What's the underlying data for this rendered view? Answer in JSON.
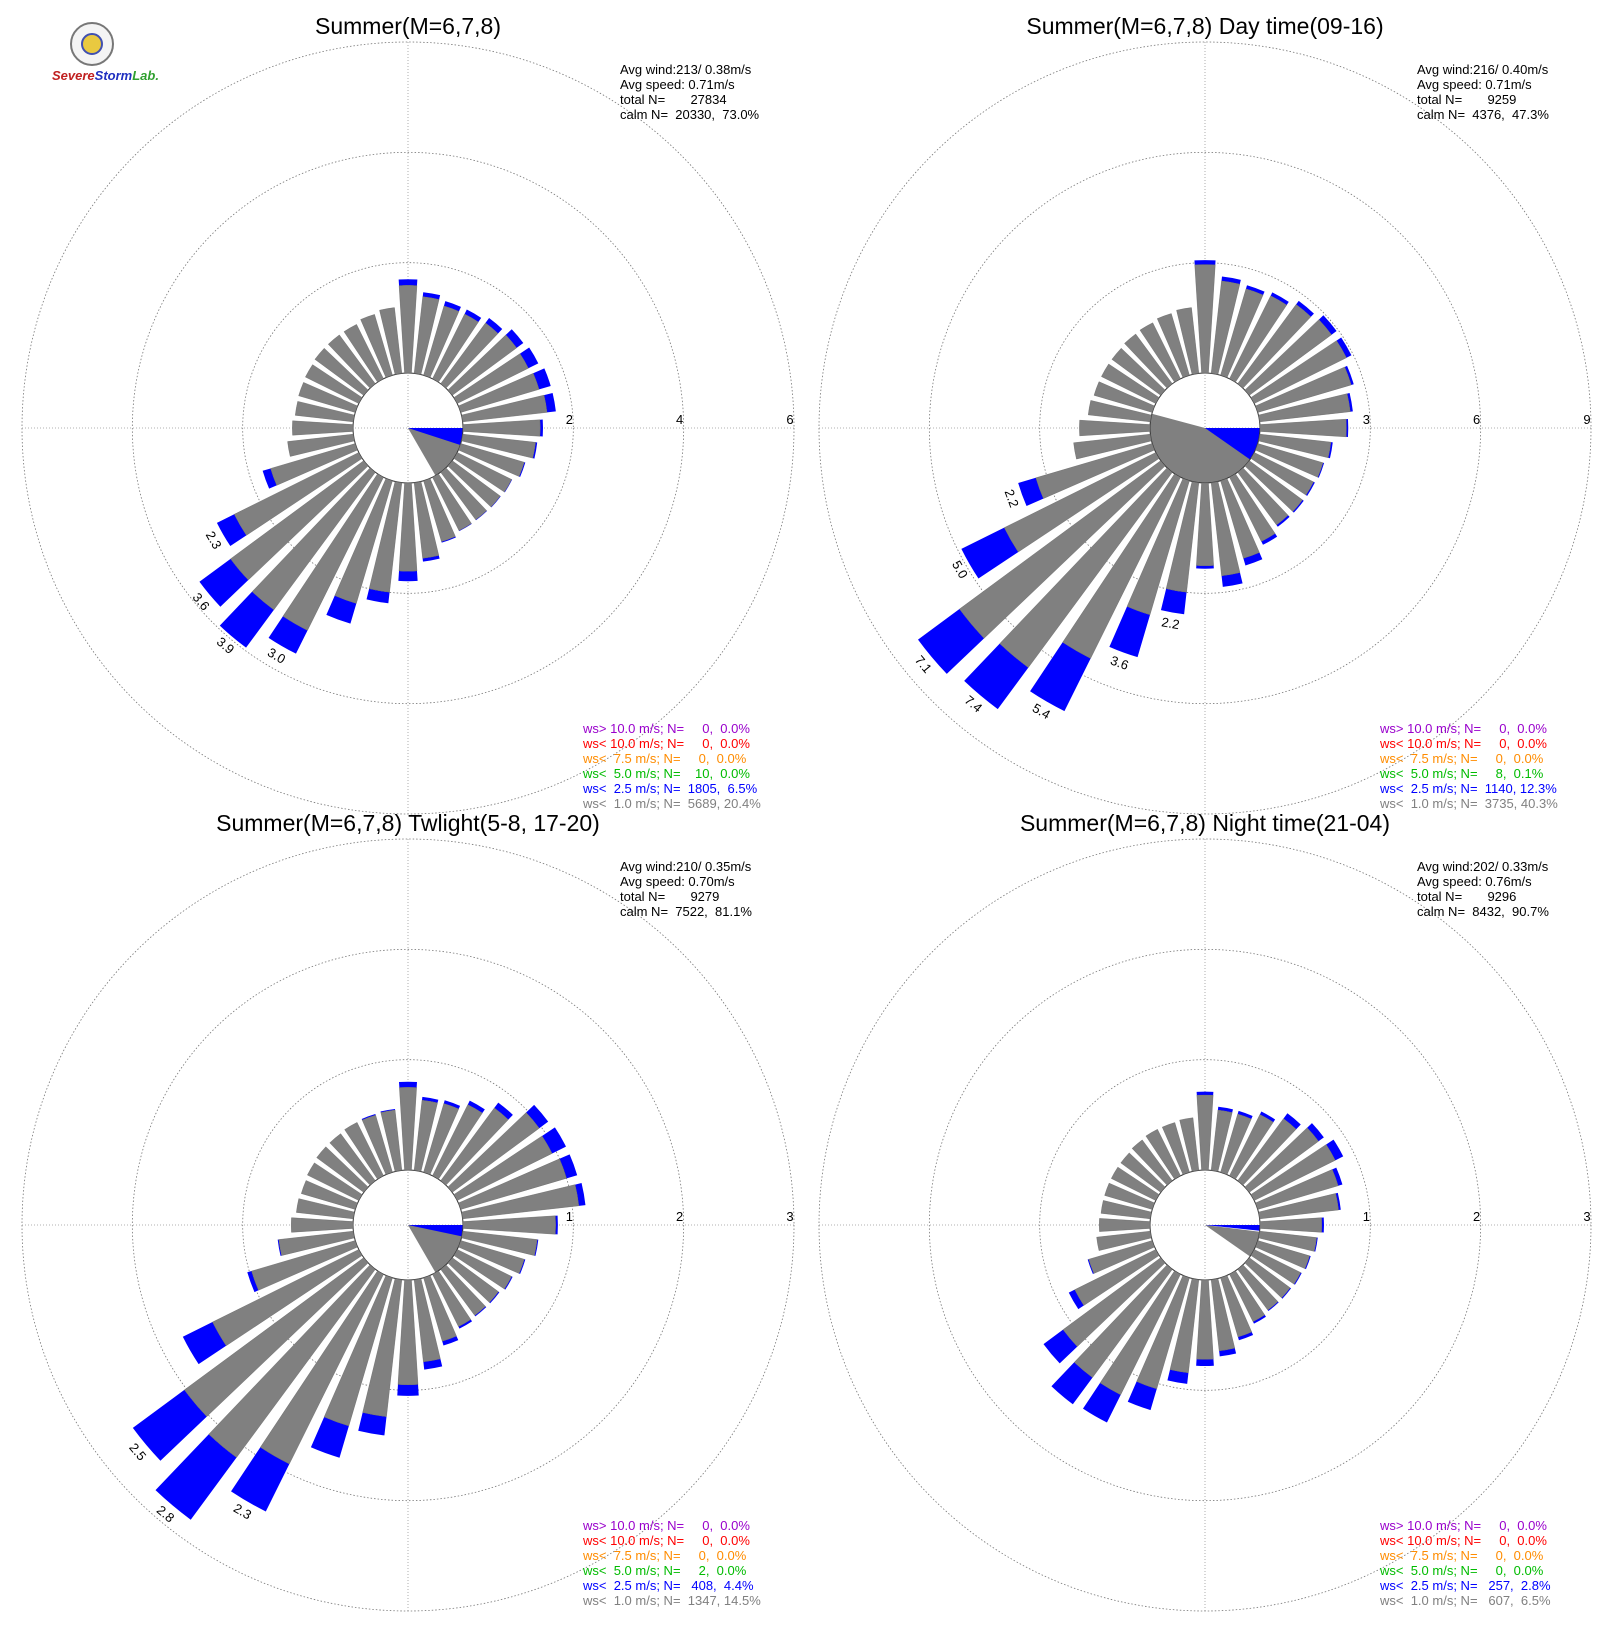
{
  "logo": {
    "text_a": "Severe",
    "text_b": "Storm",
    "text_c": "Lab."
  },
  "colors": {
    "calm": "#808080",
    "lt1": "#808080",
    "lt2_5": "#0000ff",
    "lt5": "#00bb00",
    "lt7_5": "#ff8c00",
    "lt10": "#ff0000",
    "gt10": "#9900cc"
  },
  "chart_data": [
    {
      "type": "polar-stacked-bar",
      "title": "Summer(M=6,7,8)",
      "rings": [
        2,
        4,
        6
      ],
      "stats": [
        "Avg wind:213/ 0.38m/s",
        "Avg speed: 0.71m/s",
        "total N=       27834",
        "calm N=  20330,  73.0%"
      ],
      "legend": [
        {
          "label": "ws> 10.0 m/s; N=     0,  0.0%",
          "color": "#9900cc"
        },
        {
          "label": "ws< 10.0 m/s; N=     0,  0.0%",
          "color": "#ff0000"
        },
        {
          "label": "ws<  7.5 m/s; N=     0,  0.0%",
          "color": "#ff8c00"
        },
        {
          "label": "ws<  5.0 m/s; N=    10,  0.0%",
          "color": "#00bb00"
        },
        {
          "label": "ws<  2.5 m/s; N=  1805,  6.5%",
          "color": "#0000ff"
        },
        {
          "label": "ws<  1.0 m/s; N=  5689, 20.4%",
          "color": "#808080"
        }
      ],
      "calm_wedge": {
        "from": 95,
        "to": 150
      },
      "calm_blue_wedge": {
        "from": 90,
        "to": 108
      },
      "bars": [
        {
          "dir": 0,
          "gray": 1.59,
          "blue": 1.7
        },
        {
          "dir": 10,
          "gray": 1.4,
          "blue": 1.48
        },
        {
          "dir": 20,
          "gray": 1.31,
          "blue": 1.4
        },
        {
          "dir": 30,
          "gray": 1.31,
          "blue": 1.4
        },
        {
          "dir": 40,
          "gray": 1.37,
          "blue": 1.48
        },
        {
          "dir": 50,
          "gray": 1.45,
          "blue": 1.6
        },
        {
          "dir": 60,
          "gray": 1.44,
          "blue": 1.64
        },
        {
          "dir": 70,
          "gray": 1.48,
          "blue": 1.7
        },
        {
          "dir": 80,
          "gray": 1.54,
          "blue": 1.7
        },
        {
          "dir": 90,
          "gray": 1.4,
          "blue": 1.45
        },
        {
          "dir": 100,
          "gray": 1.33,
          "blue": 1.36
        },
        {
          "dir": 110,
          "gray": 1.2,
          "blue": 1.22
        },
        {
          "dir": 120,
          "gray": 1.1,
          "blue": 1.11
        },
        {
          "dir": 130,
          "gray": 1.08,
          "blue": 1.09
        },
        {
          "dir": 140,
          "gray": 1.07,
          "blue": 1.08
        },
        {
          "dir": 150,
          "gray": 1.08,
          "blue": 1.09
        },
        {
          "dir": 160,
          "gray": 1.15,
          "blue": 1.17
        },
        {
          "dir": 170,
          "gray": 1.38,
          "blue": 1.44
        },
        {
          "dir": 180,
          "gray": 1.6,
          "blue": 1.78
        },
        {
          "dir": 190,
          "gray": 2.0,
          "blue": 2.2
        },
        {
          "dir": 200,
          "gray": 2.32,
          "blue": 2.7
        },
        {
          "dir": 210,
          "gray": 3.1,
          "blue": 3.57,
          "label": "3.0"
        },
        {
          "dir": 220,
          "gray": 3.1,
          "blue": 3.95,
          "label": "3.9"
        },
        {
          "dir": 230,
          "gray": 3.0,
          "blue": 3.7,
          "label": "3.6"
        },
        {
          "dir": 240,
          "gray": 2.52,
          "blue": 2.87,
          "label": "2.3"
        },
        {
          "dir": 250,
          "gray": 1.6,
          "blue": 1.75
        },
        {
          "dir": 260,
          "gray": 1.2,
          "blue": 1.2
        },
        {
          "dir": 270,
          "gray": 1.1,
          "blue": 1.1
        },
        {
          "dir": 280,
          "gray": 1.06,
          "blue": 1.06
        },
        {
          "dir": 290,
          "gray": 1.07,
          "blue": 1.07
        },
        {
          "dir": 300,
          "gray": 1.08,
          "blue": 1.08
        },
        {
          "dir": 310,
          "gray": 1.1,
          "blue": 1.1
        },
        {
          "dir": 320,
          "gray": 1.1,
          "blue": 1.1
        },
        {
          "dir": 330,
          "gray": 1.1,
          "blue": 1.1
        },
        {
          "dir": 340,
          "gray": 1.15,
          "blue": 1.15
        },
        {
          "dir": 350,
          "gray": 1.2,
          "blue": 1.2
        }
      ]
    },
    {
      "type": "polar-stacked-bar",
      "title": "Summer(M=6,7,8) Day time(09-16)",
      "rings": [
        3,
        6,
        9
      ],
      "stats": [
        "Avg wind:216/ 0.40m/s",
        "Avg speed: 0.71m/s",
        "total N=       9259",
        "calm N=  4376,  47.3%"
      ],
      "legend": [
        {
          "label": "ws> 10.0 m/s; N=     0,  0.0%",
          "color": "#9900cc"
        },
        {
          "label": "ws< 10.0 m/s; N=     0,  0.0%",
          "color": "#ff0000"
        },
        {
          "label": "ws<  7.5 m/s; N=     0,  0.0%",
          "color": "#ff8c00"
        },
        {
          "label": "ws<  5.0 m/s; N=     8,  0.1%",
          "color": "#00bb00"
        },
        {
          "label": "ws<  2.5 m/s; N=  1140, 12.3%",
          "color": "#0000ff"
        },
        {
          "label": "ws<  1.0 m/s; N=  3735, 40.3%",
          "color": "#808080"
        }
      ],
      "calm_wedge": {
        "from": 90,
        "to": 285
      },
      "calm_blue_wedge": {
        "from": 90,
        "to": 125
      },
      "bars": [
        {
          "dir": 0,
          "gray": 2.95,
          "blue": 3.07
        },
        {
          "dir": 10,
          "gray": 2.53,
          "blue": 2.65
        },
        {
          "dir": 20,
          "gray": 2.45,
          "blue": 2.55
        },
        {
          "dir": 30,
          "gray": 2.52,
          "blue": 2.62
        },
        {
          "dir": 40,
          "gray": 2.68,
          "blue": 2.8
        },
        {
          "dir": 50,
          "gray": 2.78,
          "blue": 2.95
        },
        {
          "dir": 60,
          "gray": 2.8,
          "blue": 2.95
        },
        {
          "dir": 70,
          "gray": 2.65,
          "blue": 2.72
        },
        {
          "dir": 80,
          "gray": 2.48,
          "blue": 2.55
        },
        {
          "dir": 90,
          "gray": 2.35,
          "blue": 2.4
        },
        {
          "dir": 100,
          "gray": 1.95,
          "blue": 2.0
        },
        {
          "dir": 110,
          "gray": 1.85,
          "blue": 1.88
        },
        {
          "dir": 120,
          "gray": 1.8,
          "blue": 1.84
        },
        {
          "dir": 130,
          "gray": 1.8,
          "blue": 1.84
        },
        {
          "dir": 140,
          "gray": 1.78,
          "blue": 1.84
        },
        {
          "dir": 150,
          "gray": 1.95,
          "blue": 2.05
        },
        {
          "dir": 160,
          "gray": 2.2,
          "blue": 2.4
        },
        {
          "dir": 170,
          "gray": 2.55,
          "blue": 2.85
        },
        {
          "dir": 180,
          "gray": 2.25,
          "blue": 2.33
        },
        {
          "dir": 190,
          "gray": 3.0,
          "blue": 3.6,
          "label": "2.2"
        },
        {
          "dir": 200,
          "gray": 3.8,
          "blue": 5.0,
          "label": "3.6"
        },
        {
          "dir": 210,
          "gray": 5.5,
          "blue": 7.1,
          "label": "5.4"
        },
        {
          "dir": 220,
          "gray": 6.6,
          "blue": 8.0,
          "label": "7.4"
        },
        {
          "dir": 230,
          "gray": 6.8,
          "blue": 8.2,
          "label": "7.1"
        },
        {
          "dir": 240,
          "gray": 4.6,
          "blue": 5.9,
          "label": "5.0"
        },
        {
          "dir": 250,
          "gray": 3.3,
          "blue": 3.8,
          "label": "2.2"
        },
        {
          "dir": 260,
          "gray": 2.1,
          "blue": 2.1
        },
        {
          "dir": 270,
          "gray": 1.92,
          "blue": 1.92
        },
        {
          "dir": 280,
          "gray": 1.7,
          "blue": 1.7
        },
        {
          "dir": 290,
          "gray": 1.65,
          "blue": 1.65
        },
        {
          "dir": 300,
          "gray": 1.65,
          "blue": 1.65
        },
        {
          "dir": 310,
          "gray": 1.65,
          "blue": 1.65
        },
        {
          "dir": 320,
          "gray": 1.68,
          "blue": 1.68
        },
        {
          "dir": 330,
          "gray": 1.7,
          "blue": 1.7
        },
        {
          "dir": 340,
          "gray": 1.75,
          "blue": 1.75
        },
        {
          "dir": 350,
          "gray": 1.8,
          "blue": 1.8
        }
      ]
    },
    {
      "type": "polar-stacked-bar",
      "title": "Summer(M=6,7,8) Twlight(5-8, 17-20)",
      "rings": [
        1,
        2,
        3
      ],
      "stats": [
        "Avg wind:210/ 0.35m/s",
        "Avg speed: 0.70m/s",
        "total N=       9279",
        "calm N=  7522,  81.1%"
      ],
      "legend": [
        {
          "label": "ws> 10.0 m/s; N=     0,  0.0%",
          "color": "#9900cc"
        },
        {
          "label": "ws< 10.0 m/s; N=     0,  0.0%",
          "color": "#ff0000"
        },
        {
          "label": "ws<  7.5 m/s; N=     0,  0.0%",
          "color": "#ff8c00"
        },
        {
          "label": "ws<  5.0 m/s; N=     2,  0.0%",
          "color": "#00bb00"
        },
        {
          "label": "ws<  2.5 m/s; N=   408,  4.4%",
          "color": "#0000ff"
        },
        {
          "label": "ws<  1.0 m/s; N=  1347, 14.5%",
          "color": "#808080"
        }
      ],
      "calm_wedge": {
        "from": 95,
        "to": 150
      },
      "calm_blue_wedge": {
        "from": 90,
        "to": 102
      },
      "bars": [
        {
          "dir": 0,
          "gray": 0.75,
          "blue": 0.8
        },
        {
          "dir": 10,
          "gray": 0.64,
          "blue": 0.67
        },
        {
          "dir": 20,
          "gray": 0.65,
          "blue": 0.68
        },
        {
          "dir": 30,
          "gray": 0.72,
          "blue": 0.76
        },
        {
          "dir": 40,
          "gray": 0.82,
          "blue": 0.88
        },
        {
          "dir": 50,
          "gray": 0.98,
          "blue": 1.08
        },
        {
          "dir": 60,
          "gray": 0.96,
          "blue": 1.1
        },
        {
          "dir": 70,
          "gray": 1.0,
          "blue": 1.1
        },
        {
          "dir": 80,
          "gray": 1.06,
          "blue": 1.12
        },
        {
          "dir": 90,
          "gray": 0.84,
          "blue": 0.86
        },
        {
          "dir": 100,
          "gray": 0.68,
          "blue": 0.69
        },
        {
          "dir": 110,
          "gray": 0.6,
          "blue": 0.61
        },
        {
          "dir": 120,
          "gray": 0.55,
          "blue": 0.56
        },
        {
          "dir": 130,
          "gray": 0.52,
          "blue": 0.53
        },
        {
          "dir": 140,
          "gray": 0.52,
          "blue": 0.53
        },
        {
          "dir": 150,
          "gray": 0.53,
          "blue": 0.55
        },
        {
          "dir": 160,
          "gray": 0.6,
          "blue": 0.64
        },
        {
          "dir": 170,
          "gray": 0.75,
          "blue": 0.82
        },
        {
          "dir": 180,
          "gray": 0.95,
          "blue": 1.05
        },
        {
          "dir": 190,
          "gray": 1.25,
          "blue": 1.42
        },
        {
          "dir": 200,
          "gray": 1.4,
          "blue": 1.7
        },
        {
          "dir": 210,
          "gray": 1.92,
          "blue": 2.4,
          "label": "2.3"
        },
        {
          "dir": 220,
          "gray": 2.12,
          "blue": 2.82,
          "label": "2.8"
        },
        {
          "dir": 230,
          "gray": 2.02,
          "blue": 2.6,
          "label": "2.5"
        },
        {
          "dir": 240,
          "gray": 1.48,
          "blue": 1.78
        },
        {
          "dir": 250,
          "gray": 0.98,
          "blue": 1.02
        },
        {
          "dir": 260,
          "gray": 0.68,
          "blue": 0.69
        },
        {
          "dir": 270,
          "gray": 0.56,
          "blue": 0.56
        },
        {
          "dir": 280,
          "gray": 0.52,
          "blue": 0.52
        },
        {
          "dir": 290,
          "gray": 0.51,
          "blue": 0.51
        },
        {
          "dir": 300,
          "gray": 0.52,
          "blue": 0.52
        },
        {
          "dir": 310,
          "gray": 0.53,
          "blue": 0.53
        },
        {
          "dir": 320,
          "gray": 0.53,
          "blue": 0.53
        },
        {
          "dir": 330,
          "gray": 0.54,
          "blue": 0.54
        },
        {
          "dir": 340,
          "gray": 0.54,
          "blue": 0.55
        },
        {
          "dir": 350,
          "gray": 0.55,
          "blue": 0.56
        }
      ]
    },
    {
      "type": "polar-stacked-bar",
      "title": "Summer(M=6,7,8) Night time(21-04)",
      "rings": [
        1,
        2,
        3
      ],
      "stats": [
        "Avg wind:202/ 0.33m/s",
        "Avg speed: 0.76m/s",
        "total N=       9296",
        "calm N=  8432,  90.7%"
      ],
      "legend": [
        {
          "label": "ws> 10.0 m/s; N=     0,  0.0%",
          "color": "#9900cc"
        },
        {
          "label": "ws< 10.0 m/s; N=     0,  0.0%",
          "color": "#ff0000"
        },
        {
          "label": "ws<  7.5 m/s; N=     0,  0.0%",
          "color": "#ff8c00"
        },
        {
          "label": "ws<  5.0 m/s; N=     0,  0.0%",
          "color": "#00bb00"
        },
        {
          "label": "ws<  2.5 m/s; N=   257,  2.8%",
          "color": "#0000ff"
        },
        {
          "label": "ws<  1.0 m/s; N=   607,  6.5%",
          "color": "#808080"
        }
      ],
      "calm_wedge": {
        "from": 97,
        "to": 125
      },
      "calm_blue_wedge": {
        "from": 90,
        "to": 96
      },
      "bars": [
        {
          "dir": 0,
          "gray": 0.68,
          "blue": 0.71
        },
        {
          "dir": 10,
          "gray": 0.55,
          "blue": 0.58
        },
        {
          "dir": 20,
          "gray": 0.55,
          "blue": 0.58
        },
        {
          "dir": 30,
          "gray": 0.62,
          "blue": 0.65
        },
        {
          "dir": 40,
          "gray": 0.7,
          "blue": 0.76
        },
        {
          "dir": 50,
          "gray": 0.78,
          "blue": 0.84
        },
        {
          "dir": 60,
          "gray": 0.82,
          "blue": 0.9
        },
        {
          "dir": 70,
          "gray": 0.76,
          "blue": 0.8
        },
        {
          "dir": 80,
          "gray": 0.72,
          "blue": 0.74
        },
        {
          "dir": 90,
          "gray": 0.56,
          "blue": 0.58
        },
        {
          "dir": 100,
          "gray": 0.52,
          "blue": 0.53
        },
        {
          "dir": 110,
          "gray": 0.49,
          "blue": 0.5
        },
        {
          "dir": 120,
          "gray": 0.47,
          "blue": 0.48
        },
        {
          "dir": 130,
          "gray": 0.46,
          "blue": 0.47
        },
        {
          "dir": 140,
          "gray": 0.46,
          "blue": 0.47
        },
        {
          "dir": 150,
          "gray": 0.48,
          "blue": 0.5
        },
        {
          "dir": 160,
          "gray": 0.56,
          "blue": 0.59
        },
        {
          "dir": 170,
          "gray": 0.65,
          "blue": 0.7
        },
        {
          "dir": 180,
          "gray": 0.72,
          "blue": 0.78
        },
        {
          "dir": 190,
          "gray": 0.85,
          "blue": 0.95
        },
        {
          "dir": 200,
          "gray": 1.05,
          "blue": 1.25
        },
        {
          "dir": 210,
          "gray": 1.22,
          "blue": 1.5
        },
        {
          "dir": 220,
          "gray": 1.22,
          "blue": 1.52
        },
        {
          "dir": 230,
          "gray": 1.1,
          "blue": 1.32
        },
        {
          "dir": 240,
          "gray": 0.82,
          "blue": 0.88
        },
        {
          "dir": 250,
          "gray": 0.6,
          "blue": 0.61
        },
        {
          "dir": 260,
          "gray": 0.49,
          "blue": 0.49
        },
        {
          "dir": 270,
          "gray": 0.46,
          "blue": 0.46
        },
        {
          "dir": 280,
          "gray": 0.45,
          "blue": 0.45
        },
        {
          "dir": 290,
          "gray": 0.45,
          "blue": 0.45
        },
        {
          "dir": 300,
          "gray": 0.45,
          "blue": 0.45
        },
        {
          "dir": 310,
          "gray": 0.45,
          "blue": 0.45
        },
        {
          "dir": 320,
          "gray": 0.46,
          "blue": 0.46
        },
        {
          "dir": 330,
          "gray": 0.47,
          "blue": 0.47
        },
        {
          "dir": 340,
          "gray": 0.47,
          "blue": 0.47
        },
        {
          "dir": 350,
          "gray": 0.48,
          "blue": 0.48
        }
      ]
    }
  ]
}
